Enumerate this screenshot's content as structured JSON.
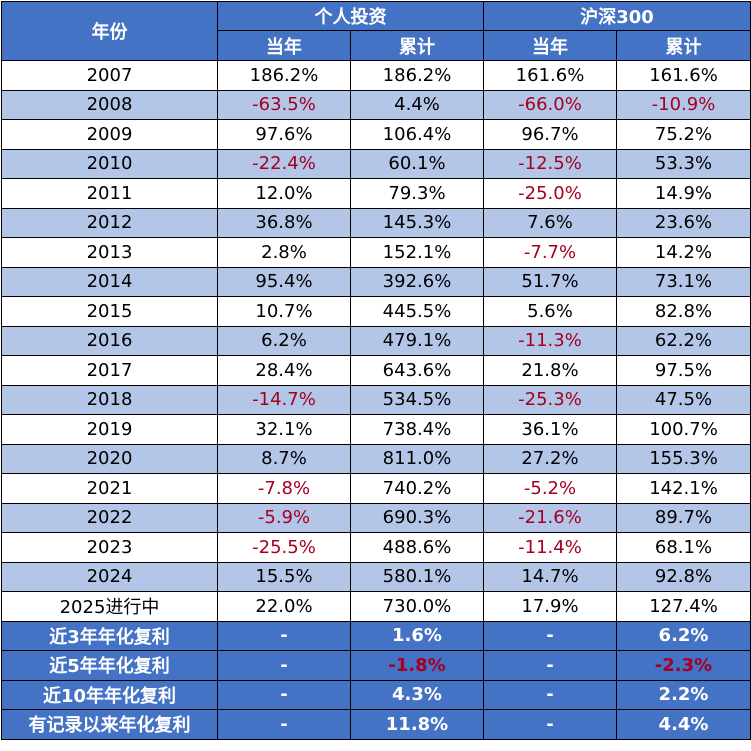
{
  "header": {
    "year": "年份",
    "personal": "个人投资",
    "index": "沪深300",
    "current": "当年",
    "cumulative": "累计"
  },
  "rows": [
    {
      "year": "2007",
      "p_cur": "186.2%",
      "p_cum": "186.2%",
      "i_cur": "161.6%",
      "i_cum": "161.6%"
    },
    {
      "year": "2008",
      "p_cur": "-63.5%",
      "p_cum": "4.4%",
      "i_cur": "-66.0%",
      "i_cum": "-10.9%"
    },
    {
      "year": "2009",
      "p_cur": "97.6%",
      "p_cum": "106.4%",
      "i_cur": "96.7%",
      "i_cum": "75.2%"
    },
    {
      "year": "2010",
      "p_cur": "-22.4%",
      "p_cum": "60.1%",
      "i_cur": "-12.5%",
      "i_cum": "53.3%"
    },
    {
      "year": "2011",
      "p_cur": "12.0%",
      "p_cum": "79.3%",
      "i_cur": "-25.0%",
      "i_cum": "14.9%"
    },
    {
      "year": "2012",
      "p_cur": "36.8%",
      "p_cum": "145.3%",
      "i_cur": "7.6%",
      "i_cum": "23.6%"
    },
    {
      "year": "2013",
      "p_cur": "2.8%",
      "p_cum": "152.1%",
      "i_cur": "-7.7%",
      "i_cum": "14.2%"
    },
    {
      "year": "2014",
      "p_cur": "95.4%",
      "p_cum": "392.6%",
      "i_cur": "51.7%",
      "i_cum": "73.1%"
    },
    {
      "year": "2015",
      "p_cur": "10.7%",
      "p_cum": "445.5%",
      "i_cur": "5.6%",
      "i_cum": "82.8%"
    },
    {
      "year": "2016",
      "p_cur": "6.2%",
      "p_cum": "479.1%",
      "i_cur": "-11.3%",
      "i_cum": "62.2%"
    },
    {
      "year": "2017",
      "p_cur": "28.4%",
      "p_cum": "643.6%",
      "i_cur": "21.8%",
      "i_cum": "97.5%"
    },
    {
      "year": "2018",
      "p_cur": "-14.7%",
      "p_cum": "534.5%",
      "i_cur": "-25.3%",
      "i_cum": "47.5%"
    },
    {
      "year": "2019",
      "p_cur": "32.1%",
      "p_cum": "738.4%",
      "i_cur": "36.1%",
      "i_cum": "100.7%"
    },
    {
      "year": "2020",
      "p_cur": "8.7%",
      "p_cum": "811.0%",
      "i_cur": "27.2%",
      "i_cum": "155.3%"
    },
    {
      "year": "2021",
      "p_cur": "-7.8%",
      "p_cum": "740.2%",
      "i_cur": "-5.2%",
      "i_cum": "142.1%"
    },
    {
      "year": "2022",
      "p_cur": "-5.9%",
      "p_cum": "690.3%",
      "i_cur": "-21.6%",
      "i_cum": "89.7%"
    },
    {
      "year": "2023",
      "p_cur": "-25.5%",
      "p_cum": "488.6%",
      "i_cur": "-11.4%",
      "i_cum": "68.1%"
    },
    {
      "year": "2024",
      "p_cur": "15.5%",
      "p_cum": "580.1%",
      "i_cur": "14.7%",
      "i_cum": "92.8%"
    },
    {
      "year": "2025进行中",
      "p_cur": "22.0%",
      "p_cum": "730.0%",
      "i_cur": "17.9%",
      "i_cum": "127.4%"
    }
  ],
  "summary": [
    {
      "label": "近3年年化复利",
      "p_cur": "-",
      "p_cum": "1.6%",
      "i_cur": "-",
      "i_cum": "6.2%"
    },
    {
      "label": "近5年年化复利",
      "p_cur": "-",
      "p_cum": "-1.8%",
      "i_cur": "-",
      "i_cum": "-2.3%"
    },
    {
      "label": "近10年年化复利",
      "p_cur": "-",
      "p_cum": "4.3%",
      "i_cur": "-",
      "i_cum": "2.2%"
    },
    {
      "label": "有记录以来年化复利",
      "p_cur": "-",
      "p_cum": "11.8%",
      "i_cur": "-",
      "i_cum": "4.4%"
    }
  ],
  "colors": {
    "header_bg": "#4472c4",
    "stripe_bg": "#b4c6e7",
    "negative_text": "#a50021"
  }
}
